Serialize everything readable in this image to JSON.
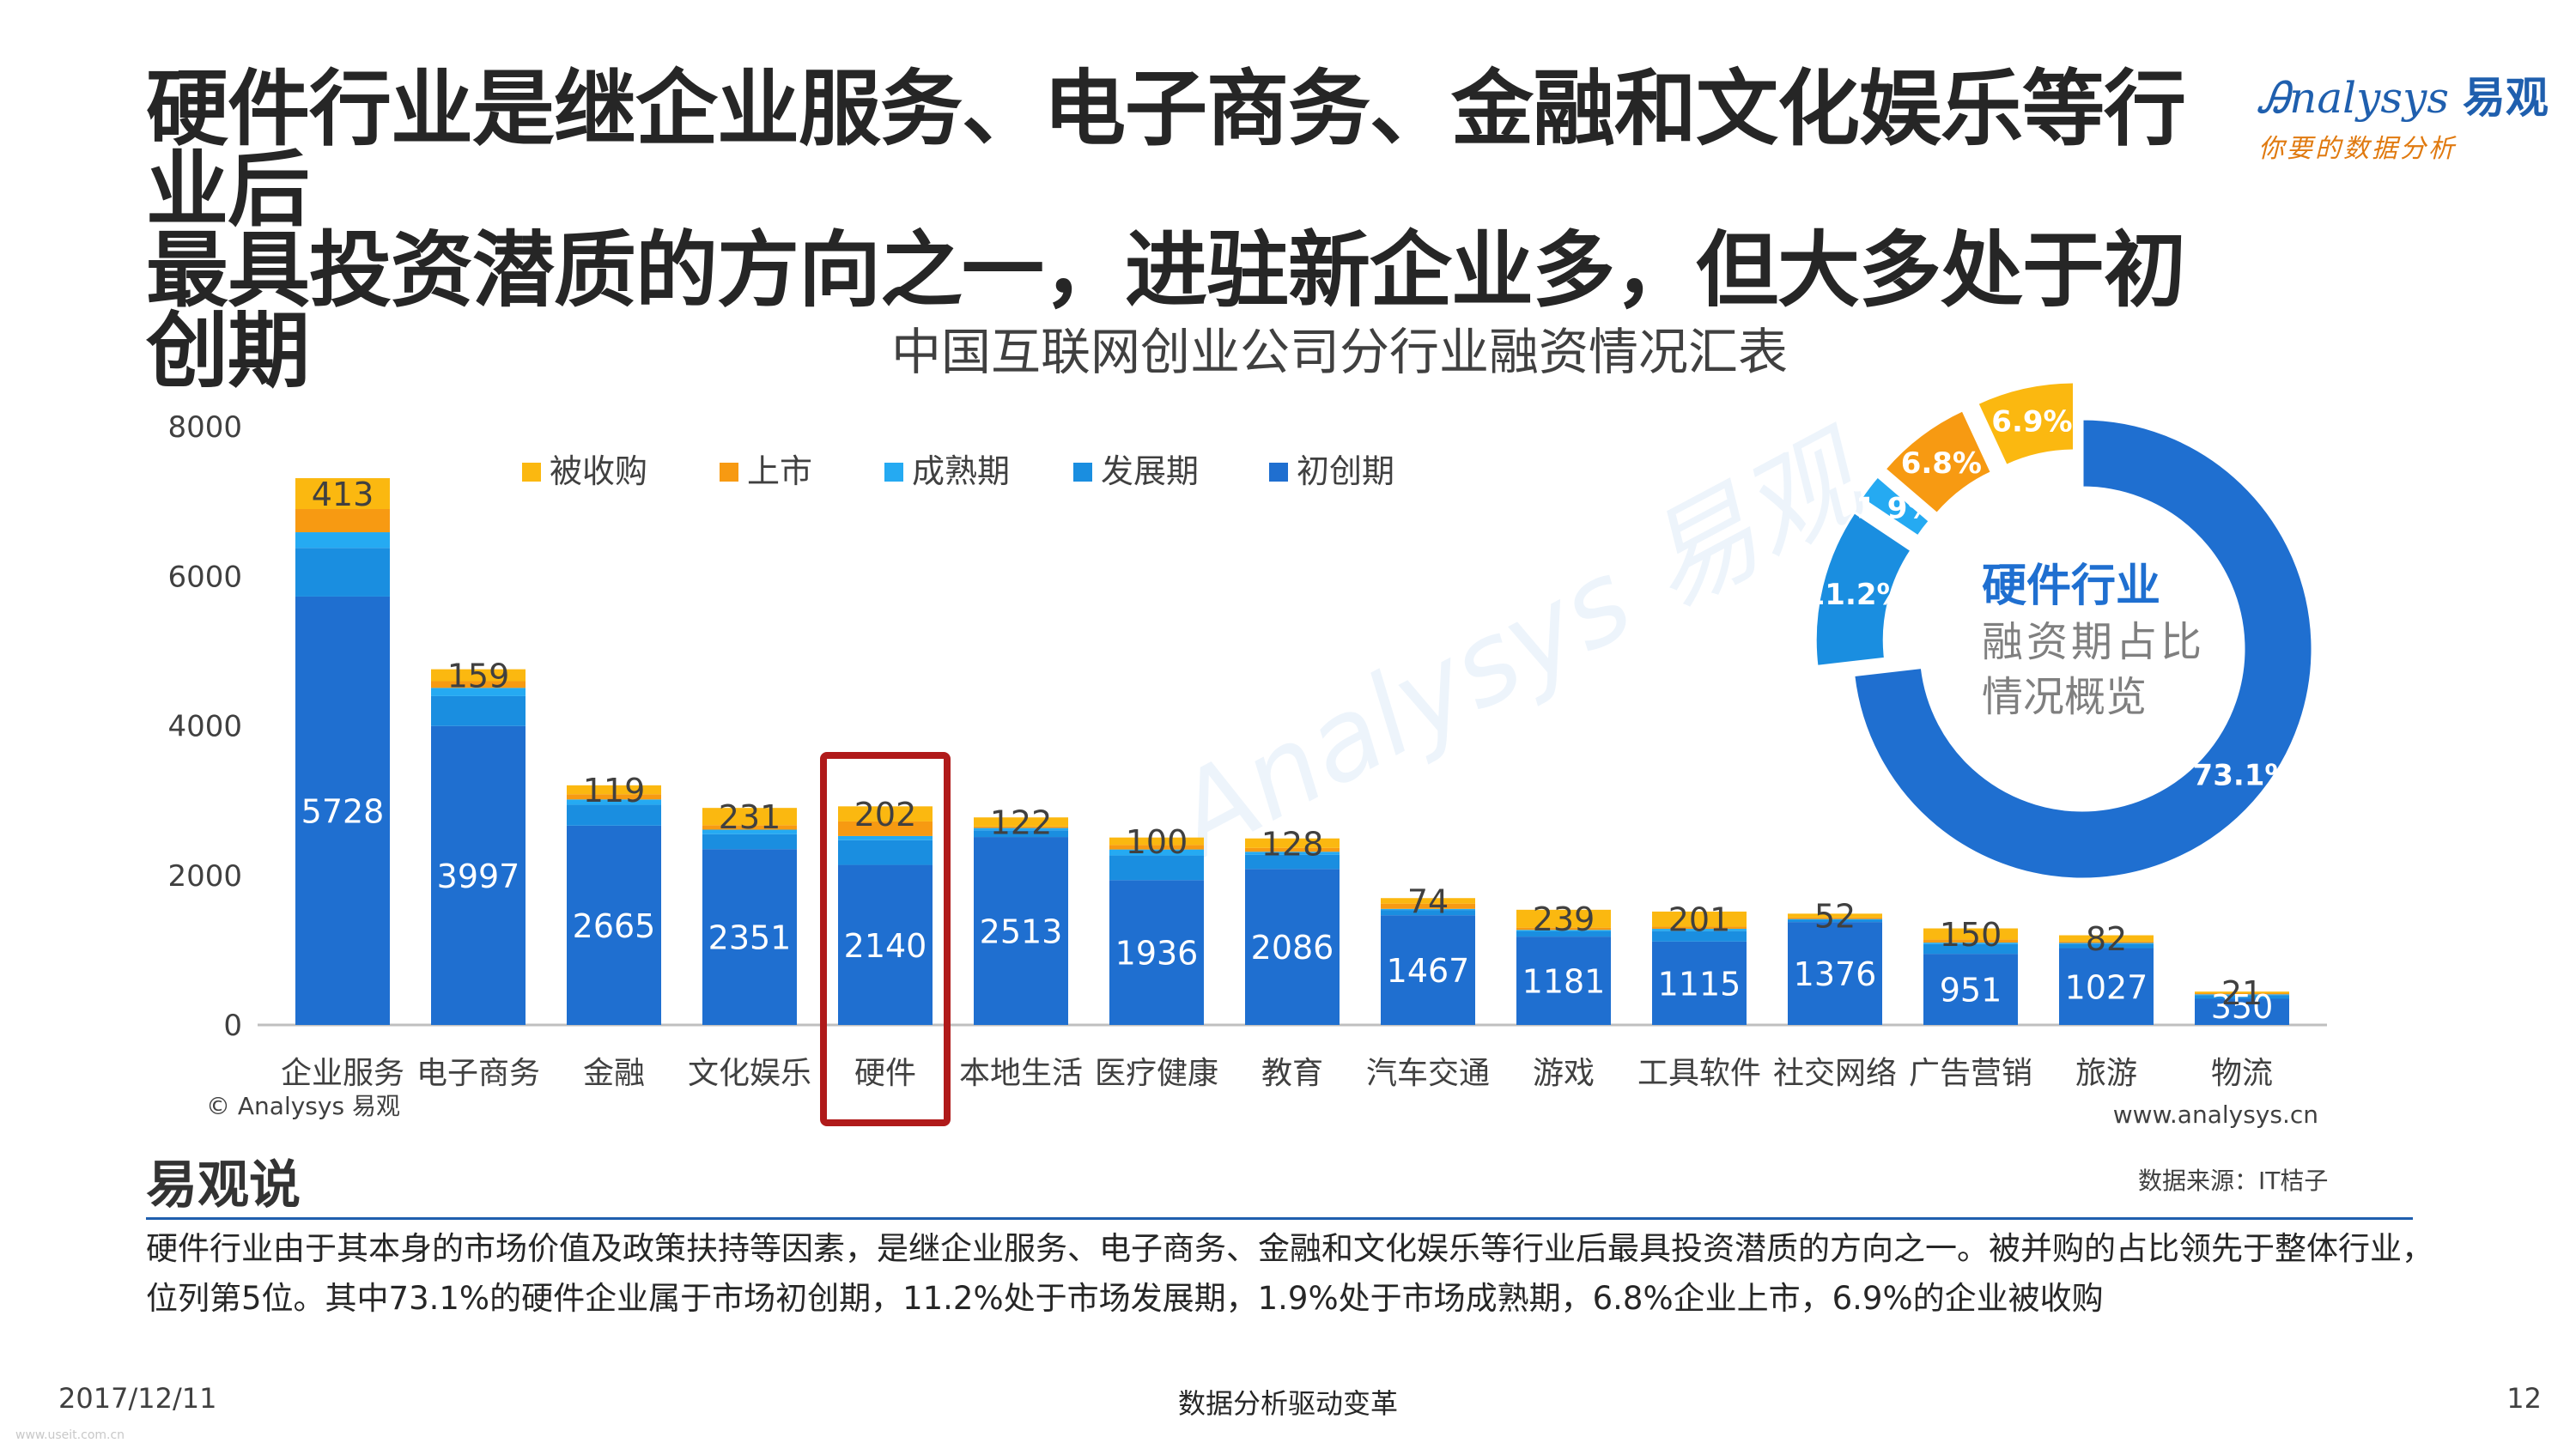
{
  "slide": {
    "title_line1": "硬件行业是继企业服务、电子商务、金融和文化娱乐等行业后",
    "title_line2": "最具投资潜质的方向之一，进驻新企业多，但大多处于初创期",
    "logo_main": "nalysys",
    "logo_cn": "易观",
    "logo_sub": "你要的数据分析",
    "section_title": "易观说",
    "source": "数据来源：IT桔子",
    "description": "硬件行业由于其本身的市场价值及政策扶持等因素，是继企业服务、电子商务、金融和文化娱乐等行业后最具投资潜质的方向之一。被并购的占比领先于整体行业，位列第5位。其中73.1%的硬件企业属于市场初创期，11.2%处于市场发展期，1.9%处于市场成熟期，6.8%企业上市，6.9%的企业被收购",
    "footer_date": "2017/12/11",
    "footer_slogan": "数据分析驱动变革",
    "page_number": "12",
    "watermark_url": "www.useit.com.cn"
  },
  "chart_data": [
    {
      "type": "bar",
      "stacked": true,
      "title": "中国互联网创业公司分行业融资情况汇表",
      "copyright": "© Analysys 易观",
      "website": "www.analysys.cn",
      "ylim": [
        0,
        8000
      ],
      "y_ticks": [
        0,
        2000,
        4000,
        6000,
        8000
      ],
      "legend_position": "top",
      "highlight_category": "硬件",
      "categories": [
        "企业服务",
        "电子商务",
        "金融",
        "文化娱乐",
        "硬件",
        "本地生活",
        "医疗健康",
        "教育",
        "汽车交通",
        "游戏",
        "工具软件",
        "社交网络",
        "广告营销",
        "旅游",
        "物流"
      ],
      "series": [
        {
          "name": "初创期",
          "color": "#1f6fd0",
          "labeled": true,
          "values": [
            5728,
            3997,
            2665,
            2351,
            2140,
            2513,
            1936,
            2086,
            1467,
            1181,
            1115,
            1376,
            951,
            1027,
            350
          ]
        },
        {
          "name": "发展期",
          "color": "#1a8ee0",
          "labeled": false,
          "values": [
            650,
            400,
            280,
            200,
            330,
            90,
            330,
            190,
            70,
            70,
            140,
            30,
            130,
            60,
            50
          ]
        },
        {
          "name": "成熟期",
          "color": "#25aaf2",
          "labeled": false,
          "values": [
            210,
            110,
            70,
            60,
            56,
            30,
            80,
            40,
            15,
            20,
            30,
            10,
            20,
            10,
            10
          ]
        },
        {
          "name": "上市",
          "color": "#f79a12",
          "labeled": false,
          "values": [
            310,
            90,
            70,
            60,
            195,
            20,
            60,
            50,
            70,
            30,
            30,
            20,
            40,
            20,
            15
          ]
        },
        {
          "name": "被收购",
          "color": "#fbb810",
          "labeled": true,
          "values": [
            413,
            159,
            119,
            231,
            202,
            122,
            100,
            128,
            74,
            239,
            201,
            52,
            150,
            82,
            21
          ]
        }
      ]
    },
    {
      "type": "pie",
      "donut": true,
      "center_title": "硬件行业",
      "center_line2": "融资期占比",
      "center_line3": "情况概览",
      "slices": [
        {
          "name": "初创期",
          "value": 73.1,
          "label": "73.1%",
          "color": "#1f6fd0"
        },
        {
          "name": "发展期",
          "value": 11.2,
          "label": "11.2%",
          "color": "#1a8ee0"
        },
        {
          "name": "成熟期",
          "value": 1.9,
          "label": "1.9%",
          "color": "#25aaf2"
        },
        {
          "name": "上市",
          "value": 6.8,
          "label": "6.8%",
          "color": "#f79a12"
        },
        {
          "name": "被收购",
          "value": 6.9,
          "label": "6.9%",
          "color": "#fbb810"
        }
      ]
    }
  ]
}
